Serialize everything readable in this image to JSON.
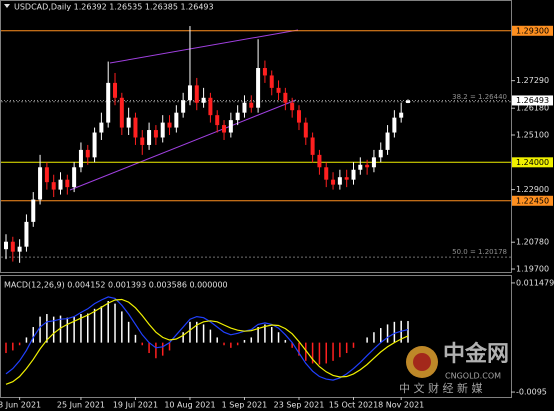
{
  "chart_data": {
    "type": "candlestick",
    "title": "USDCAD,Daily  1.26392 1.26535 1.26385 1.26493",
    "categories": [
      null,
      null,
      "3 Jun 2021",
      null,
      null,
      null,
      null,
      null,
      null,
      null,
      null,
      "25 Jun 2021",
      null,
      null,
      null,
      null,
      null,
      null,
      null,
      "19 Jul 2021",
      null,
      null,
      null,
      null,
      null,
      null,
      null,
      "10 Aug 2021",
      null,
      null,
      null,
      null,
      null,
      null,
      null,
      "1 Sep 2021",
      null,
      null,
      null,
      null,
      null,
      null,
      null,
      "23 Sep 2021",
      null,
      null,
      null,
      null,
      null,
      null,
      null,
      "15 Oct 2021",
      null,
      null,
      null,
      null,
      null,
      null,
      "8 Nov 2021",
      null
    ],
    "open": [
      1.205,
      1.208,
      1.204,
      1.206,
      1.216,
      1.225,
      1.238,
      1.232,
      1.229,
      1.233,
      1.23,
      1.238,
      1.245,
      1.242,
      1.252,
      1.256,
      1.272,
      1.266,
      1.254,
      1.258,
      1.25,
      1.247,
      1.253,
      1.25,
      1.256,
      1.254,
      1.26,
      1.265,
      1.271,
      1.264,
      1.266,
      1.259,
      1.255,
      1.252,
      1.257,
      1.26,
      1.264,
      1.262,
      1.278,
      1.275,
      1.27,
      1.268,
      1.264,
      1.261,
      1.256,
      1.25,
      1.243,
      1.238,
      1.233,
      1.231,
      1.234,
      1.233,
      1.237,
      1.239,
      1.238,
      1.242,
      1.245,
      1.252,
      1.258,
      1.26392
    ],
    "high": [
      1.211,
      1.21,
      1.209,
      1.219,
      1.228,
      1.243,
      1.24,
      1.235,
      1.236,
      1.235,
      1.24,
      1.248,
      1.247,
      1.254,
      1.26,
      1.2806,
      1.276,
      1.268,
      1.262,
      1.26,
      1.253,
      1.256,
      1.255,
      1.259,
      1.259,
      1.263,
      1.268,
      1.2949,
      1.274,
      1.27,
      1.268,
      1.261,
      1.257,
      1.26,
      1.263,
      1.267,
      1.267,
      1.2896,
      1.281,
      1.277,
      1.273,
      1.27,
      1.266,
      1.263,
      1.258,
      1.252,
      1.245,
      1.24,
      1.236,
      1.237,
      1.237,
      1.24,
      1.242,
      1.241,
      1.245,
      1.248,
      1.255,
      1.261,
      1.264,
      1.26535
    ],
    "low": [
      1.201,
      1.2,
      1.1995,
      1.204,
      1.214,
      1.223,
      1.229,
      1.226,
      1.227,
      1.227,
      1.228,
      1.236,
      1.239,
      1.24,
      1.249,
      1.254,
      1.263,
      1.251,
      1.251,
      1.247,
      1.243,
      1.245,
      1.247,
      1.248,
      1.251,
      1.252,
      1.258,
      1.263,
      1.261,
      1.262,
      1.256,
      1.252,
      1.249,
      1.25,
      1.255,
      1.258,
      1.26,
      1.26,
      1.272,
      1.267,
      1.265,
      1.261,
      1.258,
      1.253,
      1.247,
      1.24,
      1.235,
      1.23,
      1.229,
      1.229,
      1.23,
      1.231,
      1.235,
      1.235,
      1.236,
      1.24,
      1.243,
      1.25,
      1.256,
      1.26385
    ],
    "close": [
      1.208,
      1.204,
      1.206,
      1.216,
      1.225,
      1.238,
      1.232,
      1.229,
      1.233,
      1.23,
      1.238,
      1.245,
      1.242,
      1.252,
      1.256,
      1.272,
      1.266,
      1.254,
      1.258,
      1.25,
      1.247,
      1.253,
      1.25,
      1.256,
      1.254,
      1.26,
      1.265,
      1.271,
      1.264,
      1.266,
      1.259,
      1.255,
      1.252,
      1.257,
      1.26,
      1.264,
      1.262,
      1.278,
      1.275,
      1.27,
      1.268,
      1.264,
      1.261,
      1.256,
      1.25,
      1.243,
      1.238,
      1.233,
      1.231,
      1.234,
      1.233,
      1.237,
      1.239,
      1.238,
      1.242,
      1.245,
      1.252,
      1.258,
      1.26,
      1.26493
    ],
    "up_color": "#ffffff",
    "down_color": "#ff2020",
    "ylim": [
      1.1958,
      1.305
    ],
    "yticks": [
      {
        "value": 1.2729,
        "label": "1.27290"
      },
      {
        "value": 1.2618,
        "label": "1.26180"
      },
      {
        "value": 1.251,
        "label": "1.25100"
      },
      {
        "value": 1.229,
        "label": "1.22900"
      },
      {
        "value": 1.2078,
        "label": "1.20780"
      },
      {
        "value": 1.197,
        "label": "1.19700"
      }
    ],
    "levels": [
      {
        "value": 1.293,
        "label": "1.29300",
        "color": "#ff9020"
      },
      {
        "value": 1.24,
        "label": "1.24000",
        "color": "#f0f000"
      },
      {
        "value": 1.2245,
        "label": "1.22450",
        "color": "#ff9020"
      }
    ],
    "last_price": {
      "value": 1.26493,
      "label": "1.26493"
    },
    "fibs": [
      {
        "value": 1.2644,
        "label": "38.2 = 1.26440"
      },
      {
        "value": 1.20178,
        "label": "50.0 = 1.20178"
      }
    ],
    "macd": {
      "title": "MACD(12,26,9) 0.004152 0.001393 0.003586 0.000000",
      "histogram": [
        -0.002,
        -0.0015,
        -0.0005,
        0.001,
        0.003,
        0.005,
        0.0055,
        0.005,
        0.0052,
        0.0048,
        0.005,
        0.0055,
        0.0056,
        0.0065,
        0.007,
        0.008,
        0.0075,
        0.006,
        0.004,
        0.0015,
        -0.0005,
        -0.002,
        -0.003,
        -0.0025,
        -0.0015,
        0.0,
        0.002,
        0.004,
        0.004,
        0.0035,
        0.0025,
        0.001,
        -0.0005,
        -0.001,
        -0.0005,
        0.0005,
        0.001,
        0.003,
        0.0035,
        0.003,
        0.002,
        0.0005,
        -0.001,
        -0.0025,
        -0.0035,
        -0.004,
        -0.0042,
        -0.004,
        -0.0035,
        -0.0028,
        -0.002,
        -0.001,
        0.0,
        0.001,
        0.002,
        0.0028,
        0.0035,
        0.004,
        0.0042,
        0.004152
      ],
      "fast_line": [
        -0.006,
        -0.005,
        -0.0035,
        -0.0015,
        0.001,
        0.003,
        0.004,
        0.0042,
        0.0045,
        0.0046,
        0.005,
        0.0058,
        0.0065,
        0.0075,
        0.0082,
        0.0088,
        0.0085,
        0.0072,
        0.0055,
        0.0035,
        0.0015,
        0.0,
        -0.001,
        -0.0008,
        0.0,
        0.0015,
        0.003,
        0.0045,
        0.005,
        0.0048,
        0.004,
        0.003,
        0.002,
        0.0015,
        0.0018,
        0.0022,
        0.0025,
        0.0035,
        0.0038,
        0.0035,
        0.0028,
        0.0015,
        0.0,
        -0.002,
        -0.004,
        -0.0055,
        -0.0065,
        -0.007,
        -0.0072,
        -0.0068,
        -0.006,
        -0.005,
        -0.0038,
        -0.0025,
        -0.0012,
        0.0,
        0.001,
        0.0018,
        0.0022,
        0.0025
      ],
      "slow_line": [
        -0.008,
        -0.0075,
        -0.0065,
        -0.005,
        -0.0032,
        -0.0012,
        0.0005,
        0.0018,
        0.0028,
        0.0035,
        0.0041,
        0.0047,
        0.0053,
        0.006,
        0.0068,
        0.0076,
        0.0082,
        0.0083,
        0.0078,
        0.0067,
        0.0052,
        0.0035,
        0.002,
        0.001,
        0.0005,
        0.0007,
        0.0014,
        0.0024,
        0.0034,
        0.004,
        0.0042,
        0.004,
        0.0034,
        0.0028,
        0.0024,
        0.0022,
        0.0023,
        0.0027,
        0.0031,
        0.0034,
        0.0033,
        0.0027,
        0.0017,
        0.0002,
        -0.0015,
        -0.0032,
        -0.0046,
        -0.0056,
        -0.0063,
        -0.0066,
        -0.0065,
        -0.006,
        -0.0052,
        -0.0042,
        -0.003,
        -0.0018,
        -0.0008,
        0.0,
        0.0007,
        0.0013
      ],
      "up_color": "#ffffff",
      "down_color": "#ff2020",
      "fast_color": "#2040ff",
      "slow_color": "#f0f000",
      "ylim": [
        -0.01045,
        0.01281
      ],
      "yticks": [
        0.011479,
        -0.0095
      ]
    },
    "watermark": {
      "brand": "中金网",
      "tagline": "中 文 财 经 新 媒",
      "site": "CNGOLD.COM"
    }
  }
}
